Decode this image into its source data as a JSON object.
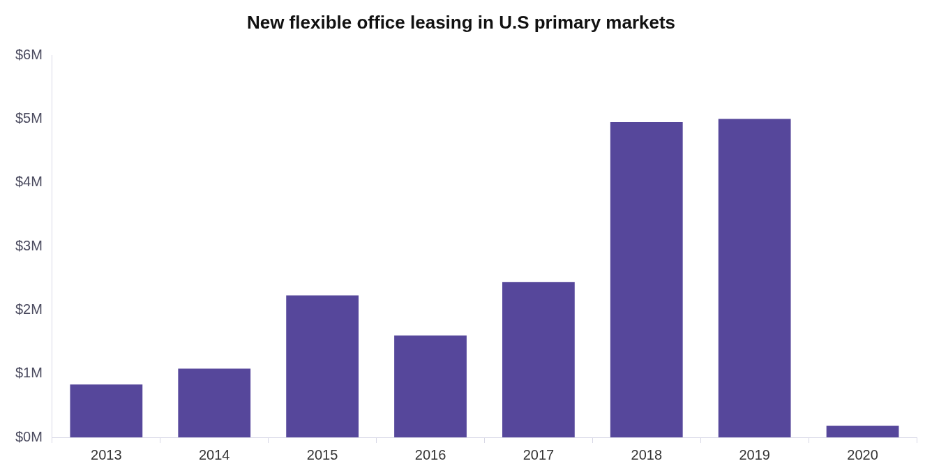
{
  "chart_data": {
    "type": "bar",
    "title": "New flexible office leasing in U.S primary markets",
    "categories": [
      "2013",
      "2014",
      "2015",
      "2016",
      "2017",
      "2018",
      "2019",
      "2020"
    ],
    "values": [
      0.83,
      1.08,
      2.23,
      1.6,
      2.44,
      4.95,
      5.0,
      0.18
    ],
    "color": "#56479b",
    "ylim": [
      0,
      6
    ],
    "yticks": [
      {
        "value": 0,
        "label": "$0M"
      },
      {
        "value": 1,
        "label": "$1M"
      },
      {
        "value": 2,
        "label": "$2M"
      },
      {
        "value": 3,
        "label": "$3M"
      },
      {
        "value": 4,
        "label": "$4M"
      },
      {
        "value": 5,
        "label": "$5M"
      },
      {
        "value": 6,
        "label": "$6M"
      }
    ],
    "grid": false,
    "legend": false
  }
}
